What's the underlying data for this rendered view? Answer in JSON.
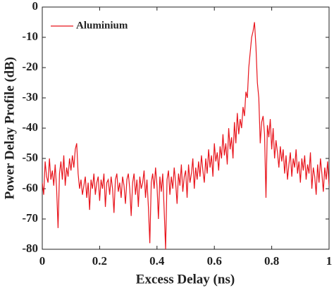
{
  "chart_data": {
    "type": "line",
    "xlabel": "Excess Delay (ns)",
    "ylabel": "Power Delay Profile (dB)",
    "xlim": [
      0,
      1
    ],
    "ylim": [
      -80,
      0
    ],
    "xticks": [
      0,
      0.2,
      0.4,
      0.6,
      0.8,
      1
    ],
    "yticks": [
      -80,
      -70,
      -60,
      -50,
      -40,
      -30,
      -20,
      -10,
      0
    ],
    "legend": "upper left",
    "x": [
      0,
      0.005,
      0.01,
      0.015,
      0.02,
      0.025,
      0.03,
      0.035,
      0.04,
      0.045,
      0.05,
      0.055,
      0.06,
      0.065,
      0.07,
      0.075,
      0.08,
      0.085,
      0.09,
      0.095,
      0.1,
      0.105,
      0.11,
      0.115,
      0.12,
      0.125,
      0.13,
      0.135,
      0.14,
      0.145,
      0.15,
      0.155,
      0.16,
      0.165,
      0.17,
      0.175,
      0.18,
      0.185,
      0.19,
      0.195,
      0.2,
      0.205,
      0.21,
      0.215,
      0.22,
      0.225,
      0.23,
      0.235,
      0.24,
      0.245,
      0.25,
      0.255,
      0.26,
      0.265,
      0.27,
      0.275,
      0.28,
      0.285,
      0.29,
      0.295,
      0.3,
      0.305,
      0.31,
      0.315,
      0.32,
      0.325,
      0.33,
      0.335,
      0.34,
      0.345,
      0.35,
      0.355,
      0.36,
      0.365,
      0.37,
      0.375,
      0.38,
      0.385,
      0.39,
      0.395,
      0.4,
      0.405,
      0.41,
      0.415,
      0.42,
      0.425,
      0.43,
      0.435,
      0.44,
      0.445,
      0.45,
      0.455,
      0.46,
      0.465,
      0.47,
      0.475,
      0.48,
      0.485,
      0.49,
      0.495,
      0.5,
      0.505,
      0.51,
      0.515,
      0.52,
      0.525,
      0.53,
      0.535,
      0.54,
      0.545,
      0.55,
      0.555,
      0.56,
      0.565,
      0.57,
      0.575,
      0.58,
      0.585,
      0.59,
      0.595,
      0.6,
      0.605,
      0.61,
      0.615,
      0.62,
      0.625,
      0.63,
      0.635,
      0.64,
      0.645,
      0.65,
      0.655,
      0.66,
      0.665,
      0.67,
      0.675,
      0.68,
      0.685,
      0.69,
      0.695,
      0.7,
      0.705,
      0.71,
      0.715,
      0.72,
      0.725,
      0.73,
      0.735,
      0.74,
      0.745,
      0.75,
      0.755,
      0.76,
      0.765,
      0.77,
      0.775,
      0.78,
      0.785,
      0.79,
      0.795,
      0.8,
      0.805,
      0.81,
      0.815,
      0.82,
      0.825,
      0.83,
      0.835,
      0.84,
      0.845,
      0.85,
      0.855,
      0.86,
      0.865,
      0.87,
      0.875,
      0.88,
      0.885,
      0.89,
      0.895,
      0.9,
      0.905,
      0.91,
      0.915,
      0.92,
      0.925,
      0.93,
      0.935,
      0.94,
      0.945,
      0.95,
      0.955,
      0.96,
      0.965,
      0.97,
      0.975,
      0.98,
      0.985,
      0.99,
      0.995,
      1
    ],
    "series": [
      {
        "name": "Aluminium",
        "color": "#e8141c",
        "values": [
          -58,
          -62,
          -51,
          -56,
          -58,
          -50,
          -57,
          -54,
          -59,
          -52,
          -60,
          -73,
          -55,
          -51,
          -57,
          -49,
          -59,
          -53,
          -56,
          -50,
          -54,
          -49,
          -53,
          -47,
          -45,
          -55,
          -60,
          -57,
          -62,
          -59,
          -56,
          -63,
          -58,
          -67,
          -57,
          -60,
          -55,
          -62,
          -58,
          -56,
          -64,
          -57,
          -60,
          -55,
          -66,
          -58,
          -57,
          -62,
          -56,
          -60,
          -68,
          -57,
          -55,
          -61,
          -58,
          -63,
          -56,
          -59,
          -65,
          -57,
          -55,
          -60,
          -69,
          -58,
          -55,
          -62,
          -57,
          -66,
          -56,
          -60,
          -58,
          -54,
          -63,
          -57,
          -66,
          -78,
          -58,
          -55,
          -60,
          -53,
          -59,
          -70,
          -56,
          -61,
          -55,
          -67,
          -80,
          -57,
          -54,
          -62,
          -56,
          -60,
          -53,
          -58,
          -65,
          -55,
          -59,
          -52,
          -61,
          -56,
          -54,
          -63,
          -52,
          -58,
          -55,
          -50,
          -60,
          -53,
          -57,
          -51,
          -56,
          -49,
          -54,
          -58,
          -50,
          -55,
          -47,
          -53,
          -49,
          -56,
          -45,
          -51,
          -48,
          -54,
          -46,
          -50,
          -42,
          -49,
          -45,
          -52,
          -40,
          -47,
          -43,
          -50,
          -38,
          -45,
          -35,
          -42,
          -37,
          -40,
          -33,
          -36,
          -28,
          -30,
          -20,
          -15,
          -10,
          -8,
          -5,
          -13,
          -25,
          -30,
          -45,
          -38,
          -36,
          -42,
          -63,
          -39,
          -43,
          -37,
          -47,
          -40,
          -50,
          -44,
          -48,
          -53,
          -46,
          -51,
          -47,
          -55,
          -49,
          -57,
          -52,
          -48,
          -56,
          -50,
          -53,
          -47,
          -55,
          -51,
          -58,
          -50,
          -54,
          -49,
          -57,
          -52,
          -55,
          -48,
          -60,
          -53,
          -56,
          -62,
          -52,
          -58,
          -50,
          -55,
          -61,
          -53,
          -57,
          -51,
          -59
        ]
      }
    ]
  }
}
